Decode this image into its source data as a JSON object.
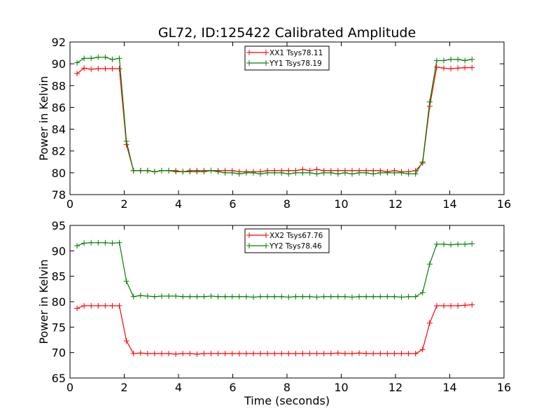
{
  "figure": {
    "title": "GL72, ID:125422 Calibrated Amplitude"
  },
  "chart_data": [
    {
      "type": "line",
      "title": "GL72, ID:125422 Calibrated Amplitude",
      "xlabel": "",
      "ylabel": "Power in Kelvin",
      "xlim": [
        0,
        16
      ],
      "ylim": [
        78,
        92
      ],
      "xticks": [
        0,
        2,
        4,
        6,
        8,
        10,
        12,
        14,
        16
      ],
      "yticks": [
        78,
        80,
        82,
        84,
        86,
        88,
        90,
        92
      ],
      "grid": false,
      "legend": "top-center",
      "x": [
        0.26,
        0.52,
        0.78,
        1.04,
        1.3,
        1.56,
        1.82,
        2.08,
        2.34,
        2.6,
        2.86,
        3.12,
        3.38,
        3.64,
        3.9,
        4.16,
        4.42,
        4.68,
        4.94,
        5.2,
        5.46,
        5.72,
        5.98,
        6.24,
        6.5,
        6.76,
        7.02,
        7.28,
        7.54,
        7.8,
        8.06,
        8.32,
        8.58,
        8.84,
        9.1,
        9.36,
        9.62,
        9.88,
        10.14,
        10.4,
        10.66,
        10.92,
        11.18,
        11.44,
        11.7,
        11.96,
        12.22,
        12.48,
        12.74,
        13.0,
        13.26,
        13.52,
        13.78,
        14.04,
        14.3,
        14.56,
        14.82
      ],
      "series": [
        {
          "name": "XX1 Tsys78.11",
          "color": "#ff0000",
          "values": [
            89.1,
            89.6,
            89.5,
            89.55,
            89.55,
            89.55,
            89.55,
            82.6,
            80.2,
            80.2,
            80.2,
            80.1,
            80.2,
            80.2,
            80.2,
            80.1,
            80.2,
            80.2,
            80.2,
            80.2,
            80.2,
            80.2,
            80.2,
            80.1,
            80.1,
            80.1,
            80.1,
            80.2,
            80.2,
            80.2,
            80.2,
            80.2,
            80.3,
            80.2,
            80.3,
            80.2,
            80.2,
            80.2,
            80.2,
            80.2,
            80.2,
            80.2,
            80.2,
            80.2,
            80.1,
            80.2,
            80.1,
            80.1,
            80.2,
            80.9,
            86.1,
            89.7,
            89.6,
            89.55,
            89.6,
            89.65,
            89.65
          ]
        },
        {
          "name": "YY1 Tsys78.19",
          "color": "#008000",
          "values": [
            90.1,
            90.5,
            90.5,
            90.6,
            90.6,
            90.4,
            90.5,
            82.9,
            80.2,
            80.2,
            80.2,
            80.1,
            80.2,
            80.2,
            80.1,
            80.1,
            80.1,
            80.1,
            80.1,
            80.2,
            80.1,
            80.0,
            80.0,
            79.9,
            80.0,
            80.0,
            79.9,
            80.0,
            80.0,
            80.0,
            79.9,
            80.0,
            80.0,
            80.0,
            79.9,
            80.0,
            80.0,
            79.9,
            80.0,
            79.9,
            80.0,
            80.0,
            79.9,
            80.0,
            80.0,
            80.0,
            80.0,
            79.9,
            79.9,
            81.0,
            86.5,
            90.3,
            90.3,
            90.4,
            90.4,
            90.3,
            90.4
          ]
        }
      ]
    },
    {
      "type": "line",
      "title": "",
      "xlabel": "Time (seconds)",
      "ylabel": "Power in Kelvin",
      "xlim": [
        0,
        16
      ],
      "ylim": [
        65,
        95
      ],
      "xticks": [
        0,
        2,
        4,
        6,
        8,
        10,
        12,
        14,
        16
      ],
      "yticks": [
        65,
        70,
        75,
        80,
        85,
        90,
        95
      ],
      "grid": false,
      "legend": "top-center",
      "x": [
        0.26,
        0.52,
        0.78,
        1.04,
        1.3,
        1.56,
        1.82,
        2.08,
        2.34,
        2.6,
        2.86,
        3.12,
        3.38,
        3.64,
        3.9,
        4.16,
        4.42,
        4.68,
        4.94,
        5.2,
        5.46,
        5.72,
        5.98,
        6.24,
        6.5,
        6.76,
        7.02,
        7.28,
        7.54,
        7.8,
        8.06,
        8.32,
        8.58,
        8.84,
        9.1,
        9.36,
        9.62,
        9.88,
        10.14,
        10.4,
        10.66,
        10.92,
        11.18,
        11.44,
        11.7,
        11.96,
        12.22,
        12.48,
        12.74,
        13.0,
        13.26,
        13.52,
        13.78,
        14.04,
        14.3,
        14.56,
        14.82
      ],
      "series": [
        {
          "name": "XX2 Tsys67.76",
          "color": "#ff0000",
          "values": [
            78.7,
            79.2,
            79.2,
            79.2,
            79.2,
            79.2,
            79.2,
            72.3,
            69.8,
            69.9,
            69.8,
            69.8,
            69.8,
            69.8,
            69.7,
            69.8,
            69.8,
            69.7,
            69.8,
            69.8,
            69.8,
            69.8,
            69.8,
            69.8,
            69.8,
            69.8,
            69.8,
            69.8,
            69.8,
            69.8,
            69.8,
            69.8,
            69.8,
            69.8,
            69.8,
            69.8,
            69.8,
            69.9,
            69.8,
            69.8,
            69.9,
            69.8,
            69.8,
            69.8,
            69.8,
            69.8,
            69.8,
            69.8,
            69.8,
            70.6,
            75.8,
            79.2,
            79.2,
            79.2,
            79.2,
            79.3,
            79.4
          ]
        },
        {
          "name": "YY2 Tsys78.46",
          "color": "#008000",
          "values": [
            91.0,
            91.5,
            91.6,
            91.6,
            91.6,
            91.5,
            91.6,
            84.0,
            81.0,
            81.2,
            81.1,
            81.0,
            81.1,
            81.1,
            81.1,
            81.0,
            81.0,
            81.0,
            81.0,
            81.1,
            81.0,
            81.0,
            81.0,
            81.0,
            81.0,
            80.9,
            81.0,
            81.0,
            81.0,
            81.0,
            80.9,
            81.0,
            81.0,
            81.0,
            80.9,
            81.0,
            81.0,
            81.0,
            81.0,
            80.9,
            81.0,
            81.0,
            81.0,
            81.0,
            81.0,
            81.0,
            80.9,
            81.0,
            81.0,
            81.8,
            87.4,
            91.3,
            91.3,
            91.2,
            91.3,
            91.3,
            91.4
          ]
        }
      ]
    }
  ]
}
